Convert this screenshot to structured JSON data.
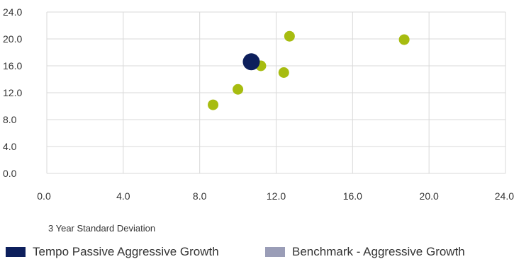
{
  "chart_data": {
    "type": "scatter",
    "xlabel": "3 Year Standard Deviation",
    "ylabel": "",
    "xlim": [
      0,
      24
    ],
    "ylim": [
      0,
      24
    ],
    "x_ticks": [
      "0.0",
      "4.0",
      "8.0",
      "12.0",
      "16.0",
      "20.0",
      "24.0"
    ],
    "y_ticks": [
      "0.0",
      "4.0",
      "8.0",
      "12.0",
      "16.0",
      "20.0",
      "24.0"
    ],
    "grid": true,
    "legend_position": "bottom",
    "series": [
      {
        "name": "Tempo Passive Aggressive Growth",
        "color": "#0d1f5c",
        "points": [
          {
            "x": 10.7,
            "y": 16.6
          }
        ]
      },
      {
        "name": "Benchmark - Aggressive Growth",
        "color": "#9a9db7",
        "point_color": "#a7bc10",
        "points": [
          {
            "x": 8.7,
            "y": 10.2
          },
          {
            "x": 10.0,
            "y": 12.5
          },
          {
            "x": 11.2,
            "y": 16.0
          },
          {
            "x": 12.4,
            "y": 15.0
          },
          {
            "x": 12.7,
            "y": 20.4
          },
          {
            "x": 18.7,
            "y": 19.9
          }
        ]
      }
    ]
  }
}
